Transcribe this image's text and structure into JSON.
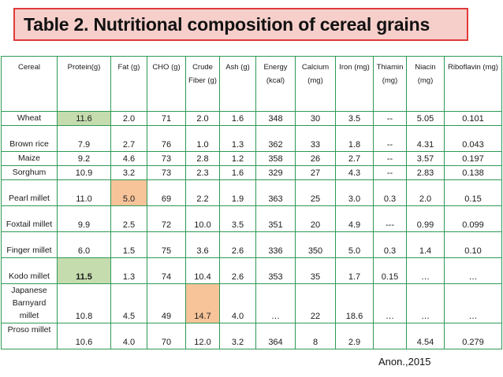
{
  "title": "Table 2. Nutritional composition of cereal grains",
  "source": "Anon.,2015",
  "table": {
    "headers": [
      "Cereal",
      "Protein(g)",
      "Fat (g)",
      "CHO (g)",
      "Crude Fiber (g)",
      "Ash (g)",
      "Energy (kcal)",
      "Calcium (mg)",
      "Iron (mg)",
      "Thiamin (mg)",
      "Niacin (mg)",
      "Riboflavin (mg)"
    ],
    "rows": [
      [
        "Wheat",
        "11.6",
        "2.0",
        "71",
        "2.0",
        "1.6",
        "348",
        "30",
        "3.5",
        "--",
        "5.05",
        "0.101"
      ],
      [
        "Brown rice",
        "7.9",
        "2.7",
        "76",
        "1.0",
        "1.3",
        "362",
        "33",
        "1.8",
        "--",
        "4.31",
        "0.043"
      ],
      [
        "Maize",
        "9.2",
        "4.6",
        "73",
        "2.8",
        "1.2",
        "358",
        "26",
        "2.7",
        "--",
        "3.57",
        "0.197"
      ],
      [
        "Sorghum",
        "10.9",
        "3.2",
        "73",
        "2.3",
        "1.6",
        "329",
        "27",
        "4.3",
        "--",
        "2.83",
        "0.138"
      ],
      [
        "Pearl millet",
        "11.0",
        "5.0",
        "69",
        "2.2",
        "1.9",
        "363",
        "25",
        "3.0",
        "0.3",
        "2.0",
        "0.15"
      ],
      [
        "Foxtail millet",
        "9.9",
        "2.5",
        "72",
        "10.0",
        "3.5",
        "351",
        "20",
        "4.9",
        "---",
        "0.99",
        "0.099"
      ],
      [
        "Finger millet",
        "6.0",
        "1.5",
        "75",
        "3.6",
        "2.6",
        "336",
        "350",
        "5.0",
        "0.3",
        "1.4",
        "0.10"
      ],
      [
        "Kodo millet",
        "11.5",
        "1.3",
        "74",
        "10.4",
        "2.6",
        "353",
        "35",
        "1.7",
        "0.15",
        "…",
        "…"
      ],
      [
        "Japanese Barnyard millet",
        "10.8",
        "4.5",
        "49",
        "14.7",
        "4.0",
        "…",
        "22",
        "18.6",
        "…",
        "…",
        "…"
      ],
      [
        "Proso millet",
        "10.6",
        "4.0",
        "70",
        "12.0",
        "3.2",
        "364",
        "8",
        "2.9",
        "",
        "4.54",
        "0.279"
      ]
    ]
  },
  "colors": {
    "title_border": "#e03a3a",
    "title_bg": "#f6cfcb",
    "grid": "#2e9a55",
    "highlight_green": "#c5dcae",
    "highlight_orange": "#f7c49a"
  }
}
